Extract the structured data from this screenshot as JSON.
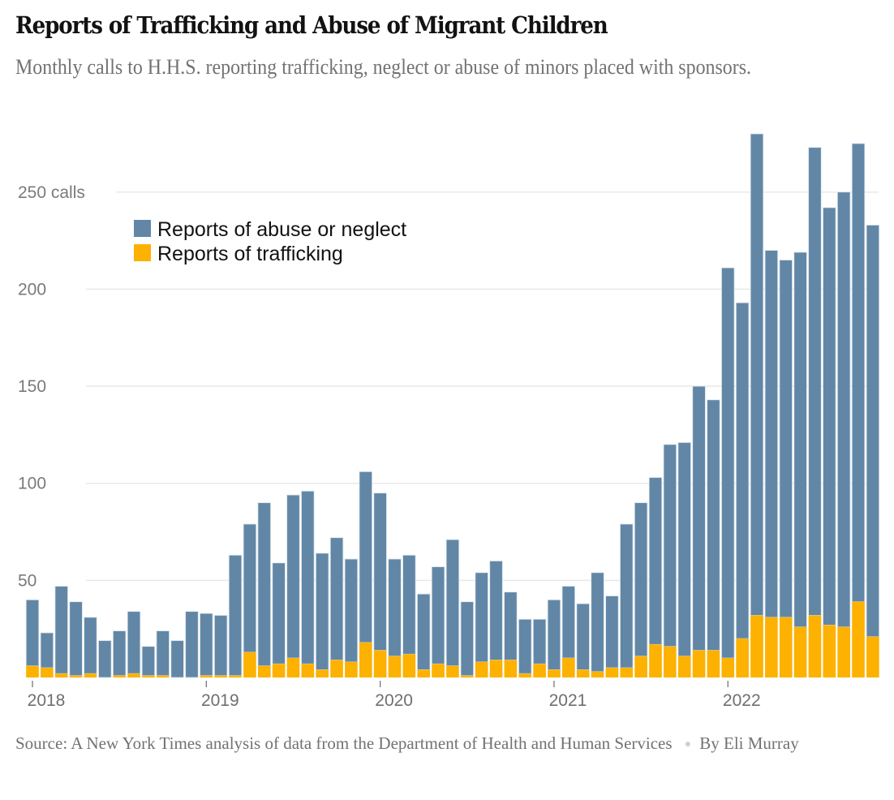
{
  "title": "Reports of Trafficking and Abuse of Migrant Children",
  "subtitle": "Monthly calls to H.H.S. reporting trafficking, neglect or abuse of minors placed with sponsors.",
  "footer": {
    "source": "Source: A New York Times analysis of data from the Department of Health and Human Services",
    "byline": "By Eli Murray",
    "separator": "●"
  },
  "chart_data": {
    "type": "bar",
    "stacked": true,
    "title": "Reports of Trafficking and Abuse of Migrant Children",
    "xlabel": "",
    "ylabel": "calls",
    "ylim": [
      0,
      280
    ],
    "grid": true,
    "legend_position": "top-left",
    "y_ticks": [
      {
        "value": 50,
        "label": "50"
      },
      {
        "value": 100,
        "label": "100"
      },
      {
        "value": 150,
        "label": "150"
      },
      {
        "value": 200,
        "label": "200"
      },
      {
        "value": 250,
        "label": "250 calls"
      }
    ],
    "x_ticks": [
      {
        "index": 0,
        "label": "2018"
      },
      {
        "index": 12,
        "label": "2019"
      },
      {
        "index": 24,
        "label": "2020"
      },
      {
        "index": 36,
        "label": "2021"
      },
      {
        "index": 48,
        "label": "2022"
      }
    ],
    "categories": [
      "2018-01",
      "2018-02",
      "2018-03",
      "2018-04",
      "2018-05",
      "2018-06",
      "2018-07",
      "2018-08",
      "2018-09",
      "2018-10",
      "2018-11",
      "2018-12",
      "2019-01",
      "2019-02",
      "2019-03",
      "2019-04",
      "2019-05",
      "2019-06",
      "2019-07",
      "2019-08",
      "2019-09",
      "2019-10",
      "2019-11",
      "2019-12",
      "2020-01",
      "2020-02",
      "2020-03",
      "2020-04",
      "2020-05",
      "2020-06",
      "2020-07",
      "2020-08",
      "2020-09",
      "2020-10",
      "2020-11",
      "2020-12",
      "2021-01",
      "2021-02",
      "2021-03",
      "2021-04",
      "2021-05",
      "2021-06",
      "2021-07",
      "2021-08",
      "2021-09",
      "2021-10",
      "2021-11",
      "2021-12",
      "2022-01",
      "2022-02",
      "2022-03",
      "2022-04",
      "2022-05",
      "2022-06",
      "2022-07",
      "2022-08",
      "2022-09",
      "2022-10",
      "2022-11"
    ],
    "series": [
      {
        "name": "Reports of trafficking",
        "color": "#fdb100",
        "values": [
          6,
          5,
          2,
          1,
          2,
          0,
          1,
          2,
          1,
          1,
          0,
          0,
          1,
          1,
          1,
          13,
          6,
          7,
          10,
          7,
          4,
          9,
          8,
          18,
          14,
          11,
          12,
          4,
          7,
          6,
          1,
          8,
          9,
          9,
          2,
          7,
          4,
          10,
          4,
          3,
          5,
          5,
          11,
          17,
          16,
          11,
          14,
          14,
          10,
          20,
          32,
          31,
          31,
          26,
          32,
          27,
          26,
          39,
          21
        ]
      },
      {
        "name": "Reports of abuse or neglect",
        "color": "#6287a6",
        "values": [
          34,
          18,
          45,
          38,
          29,
          19,
          23,
          32,
          15,
          23,
          19,
          34,
          32,
          31,
          62,
          66,
          84,
          52,
          84,
          89,
          60,
          63,
          53,
          88,
          81,
          50,
          51,
          39,
          50,
          65,
          38,
          46,
          51,
          35,
          28,
          23,
          36,
          37,
          34,
          51,
          37,
          74,
          79,
          86,
          104,
          110,
          136,
          129,
          201,
          173,
          248,
          189,
          184,
          193,
          241,
          215,
          224,
          236,
          212
        ]
      }
    ],
    "legend": [
      {
        "label": "Reports of abuse or neglect",
        "color": "#6287a6"
      },
      {
        "label": "Reports of trafficking",
        "color": "#fdb100"
      }
    ]
  }
}
